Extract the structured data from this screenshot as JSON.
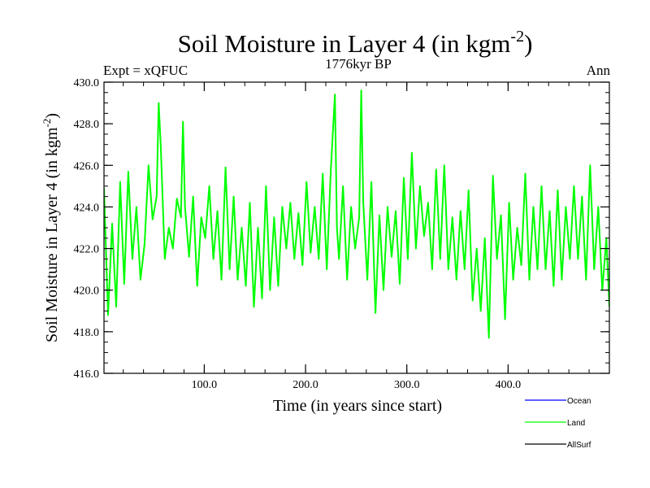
{
  "chart_data": {
    "type": "line",
    "title": "Soil Moisture in Layer 4 (in kgm",
    "title_sup": "-2",
    "title_close": ")",
    "subtitle_left": "Expt = xQFUC",
    "subtitle_center": "1776kyr BP",
    "subtitle_right": "Ann",
    "xlabel": "Time (in years since start)",
    "ylabel": "Soil Moisture in Layer 4 (in kgm",
    "ylabel_sup": "-2",
    "ylabel_close": ")",
    "xlim": [
      1,
      500
    ],
    "ylim": [
      416,
      430
    ],
    "x_ticks": [
      100,
      200,
      300,
      400
    ],
    "x_tick_labels": [
      "100.0",
      "200.0",
      "300.0",
      "400.0"
    ],
    "y_ticks": [
      416,
      418,
      420,
      422,
      424,
      426,
      428,
      430
    ],
    "y_tick_labels": [
      "416.0",
      "418.0",
      "420.0",
      "422.0",
      "424.0",
      "426.0",
      "428.0",
      "430.0"
    ],
    "legend": [
      {
        "name": "Ocean",
        "color": "#0000ff"
      },
      {
        "name": "Land",
        "color": "#00ff00"
      },
      {
        "name": "AllSurf",
        "color": "#000000"
      }
    ],
    "series": [
      {
        "name": "Land",
        "color": "#00ff00",
        "x": [
          1,
          5,
          9,
          13,
          17,
          21,
          25,
          29,
          33,
          37,
          41,
          45,
          49,
          53,
          55,
          57,
          61,
          65,
          69,
          73,
          77,
          79,
          81,
          85,
          89,
          93,
          97,
          101,
          105,
          109,
          113,
          117,
          121,
          125,
          129,
          133,
          137,
          141,
          145,
          149,
          153,
          157,
          161,
          165,
          169,
          173,
          177,
          181,
          185,
          189,
          193,
          197,
          201,
          205,
          209,
          213,
          217,
          221,
          225,
          229,
          231,
          233,
          237,
          241,
          245,
          249,
          253,
          255,
          257,
          261,
          265,
          269,
          273,
          277,
          281,
          285,
          289,
          293,
          297,
          301,
          305,
          309,
          313,
          317,
          321,
          325,
          329,
          333,
          337,
          341,
          345,
          349,
          353,
          357,
          361,
          365,
          369,
          373,
          377,
          381,
          385,
          389,
          393,
          397,
          401,
          405,
          409,
          413,
          417,
          421,
          425,
          429,
          433,
          437,
          441,
          445,
          449,
          453,
          457,
          461,
          465,
          469,
          473,
          477,
          481,
          485,
          489,
          493,
          497,
          500
        ],
        "values": [
          424.9,
          418.8,
          423.2,
          419.2,
          425.2,
          420.3,
          425.7,
          421.5,
          424.0,
          420.5,
          422.2,
          426.0,
          423.4,
          424.5,
          429.0,
          427.0,
          421.5,
          423.0,
          422.0,
          424.4,
          423.5,
          428.1,
          424.0,
          421.6,
          424.5,
          420.2,
          423.5,
          422.5,
          425.0,
          421.5,
          423.8,
          420.5,
          425.9,
          421.0,
          424.5,
          420.5,
          423.0,
          420.2,
          424.2,
          419.2,
          423.0,
          419.6,
          425.0,
          420.0,
          423.5,
          420.2,
          424.0,
          422.0,
          424.2,
          421.5,
          423.7,
          421.2,
          425.2,
          421.8,
          424.0,
          421.5,
          425.6,
          421.0,
          425.8,
          429.4,
          423.0,
          421.5,
          425.0,
          420.5,
          424.0,
          422.0,
          423.5,
          429.6,
          424.2,
          420.5,
          425.2,
          418.9,
          423.6,
          420.0,
          424.0,
          421.6,
          423.8,
          420.3,
          425.4,
          421.5,
          426.6,
          422.0,
          425.0,
          422.6,
          424.2,
          421.0,
          425.8,
          421.5,
          426.0,
          421.0,
          423.5,
          420.5,
          423.8,
          421.0,
          424.8,
          419.5,
          422.0,
          419.0,
          422.5,
          417.7,
          425.5,
          421.5,
          423.6,
          418.6,
          424.2,
          420.5,
          423.0,
          421.2,
          425.6,
          420.5,
          424.0,
          421.0,
          425.0,
          421.0,
          423.8,
          420.2,
          424.8,
          420.5,
          424.0,
          421.5,
          425.0,
          421.5,
          424.5,
          420.5,
          426.0,
          421.0,
          424.0,
          420.0,
          422.5,
          419.2
        ]
      }
    ]
  }
}
